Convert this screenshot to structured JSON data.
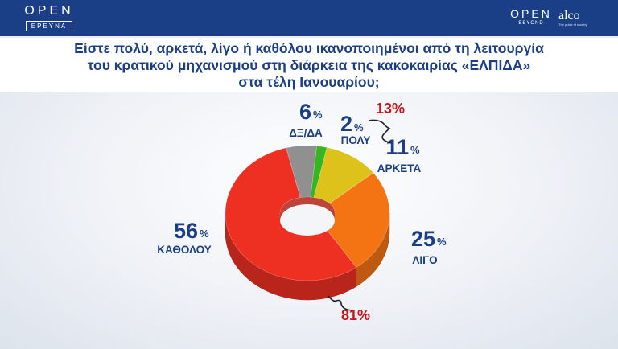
{
  "header": {
    "left_logo": {
      "word": "OPEN",
      "sub": "ΕΡΕΥΝΑ"
    },
    "right_logo_1": {
      "word": "OPEN",
      "sub": "BEYOND"
    },
    "right_logo_2": {
      "word": "alco",
      "sub": "The pulse of society"
    }
  },
  "title_lines": [
    "Είστε πολύ, αρκετά, λίγο ή καθόλου ικανοποιημένοι από τη λειτουργία",
    "του κρατικού μηχανισμού στη διάρκεια της κακοκαιρίας «ΕΛΠΙΔΑ»",
    "στα τέλη Ιανουαρίου;"
  ],
  "colors": {
    "brand_blue": "#1b3f86",
    "group_red": "#c8161d",
    "pie": [
      "#909090",
      "#35b51f",
      "#ddc21c",
      "#f47313",
      "#ee3023"
    ]
  },
  "chart_data": {
    "type": "pie",
    "style": "3d-donut",
    "title": "Είστε πολύ, αρκετά, λίγο ή καθόλου ικανοποιημένοι από τη λειτουργία του κρατικού μηχανισμού στη διάρκεια της κακοκαιρίας «ΕΛΠΙΔΑ» στα τέλη Ιανουαρίου;",
    "slices": [
      {
        "label": "ΔΞ/ΔΑ",
        "value": 6,
        "display": "6",
        "unit": "%",
        "color": "#909090"
      },
      {
        "label": "ΠΟΛΥ",
        "value": 2,
        "display": "2",
        "unit": "%",
        "color": "#35b51f"
      },
      {
        "label": "ΑΡΚΕΤΑ",
        "value": 11,
        "display": "11",
        "unit": "%",
        "color": "#ddc21c"
      },
      {
        "label": "ΛΙΓΟ",
        "value": 25,
        "display": "25",
        "unit": "%",
        "color": "#f47313"
      },
      {
        "label": "ΚΑΘΟΛΟΥ",
        "value": 56,
        "display": "56",
        "unit": "%",
        "color": "#ee3023"
      }
    ],
    "group_annotations": [
      {
        "members": [
          "ΠΟΛΥ",
          "ΑΡΚΕΤΑ"
        ],
        "text": "13%"
      },
      {
        "members": [
          "ΛΙΓΟ",
          "ΚΑΘΟΛΟΥ"
        ],
        "text": "81%"
      }
    ]
  }
}
